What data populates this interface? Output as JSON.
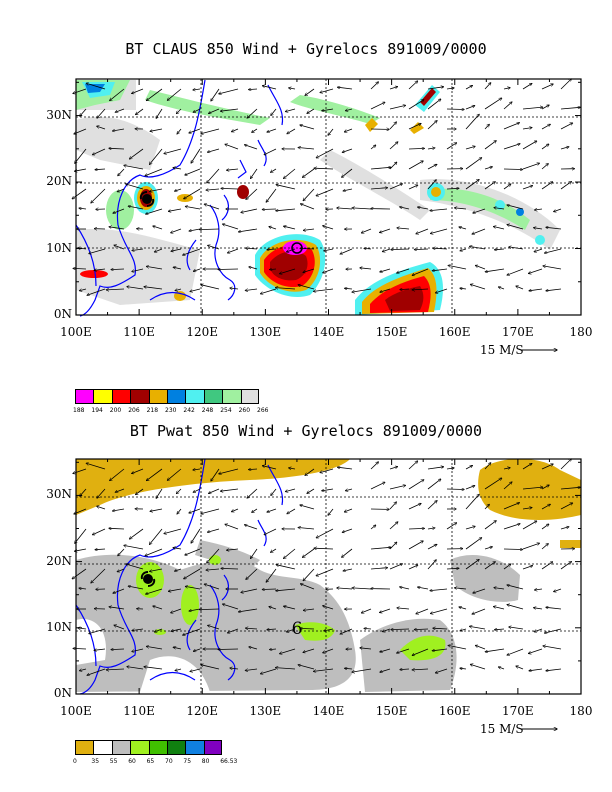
{
  "panels": [
    {
      "title": "BT CLAUS 850 Wind + Gyrelocs 891009/0000",
      "x_ticks": [
        "100E",
        "110E",
        "120E",
        "130E",
        "140E",
        "150E",
        "160E",
        "170E",
        "180"
      ],
      "y_ticks": [
        "0N",
        "10N",
        "20N",
        "30N"
      ],
      "ref_vector_label": "15 M/S",
      "legend": {
        "colors": [
          "#ff00ff",
          "#ffff00",
          "#ff0000",
          "#a00000",
          "#e8b000",
          "#0080e0",
          "#50f0f0",
          "#40c880",
          "#a0f0a0",
          "#e0e0e0"
        ],
        "labels": [
          "188",
          "194",
          "200",
          "206",
          "218",
          "230",
          "242",
          "248",
          "254",
          "260",
          "266"
        ]
      }
    },
    {
      "title": "BT Pwat 850 Wind + Gyrelocs 891009/0000",
      "x_ticks": [
        "100E",
        "110E",
        "120E",
        "130E",
        "140E",
        "150E",
        "160E",
        "170E",
        "180"
      ],
      "y_ticks": [
        "0N",
        "10N",
        "20N",
        "30N"
      ],
      "ref_vector_label": "15 M/S",
      "legend": {
        "colors": [
          "#e0b010",
          "#ffffff",
          "#bebebe",
          "#a0f020",
          "#40c000",
          "#108010",
          "#1080e0",
          "#8000c0"
        ],
        "labels": [
          "0",
          "35",
          "55",
          "60",
          "65",
          "70",
          "75",
          "80",
          "66.53"
        ]
      }
    }
  ],
  "colors": {
    "coast": "#0000ff",
    "frame": "#000000"
  },
  "cyclone_symbol_name": "tropical-cyclone-icon",
  "gyre_marker_label": "6"
}
